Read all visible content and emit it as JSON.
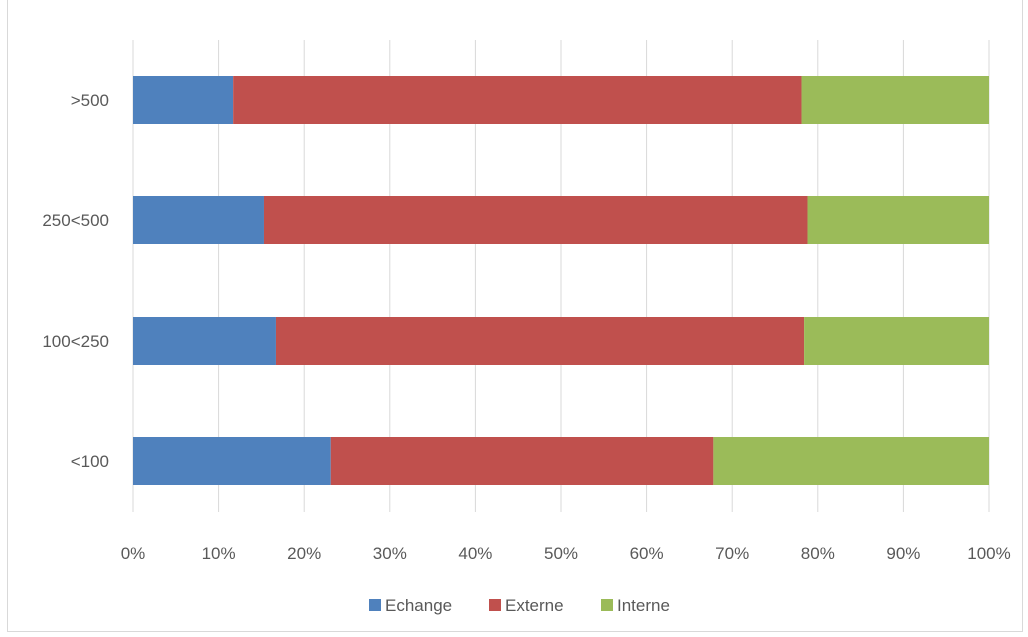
{
  "chart_data": {
    "type": "bar",
    "orientation": "horizontal",
    "stacked": "percent",
    "categories": [
      ">500",
      "250<500",
      "100<250",
      "<100"
    ],
    "series": [
      {
        "name": "Echange",
        "color": "#4f81bd",
        "values": [
          11.7,
          15.3,
          16.7,
          23.1
        ]
      },
      {
        "name": "Externe",
        "color": "#c0504d",
        "values": [
          66.4,
          63.5,
          61.7,
          44.7
        ]
      },
      {
        "name": "Interne",
        "color": "#9bbb59",
        "values": [
          21.9,
          21.2,
          21.6,
          32.2
        ]
      }
    ],
    "xlim": [
      0,
      100
    ],
    "x_ticks": [
      "0%",
      "10%",
      "20%",
      "30%",
      "40%",
      "50%",
      "60%",
      "70%",
      "80%",
      "90%",
      "100%"
    ],
    "grid": true,
    "legend": "bottom"
  }
}
